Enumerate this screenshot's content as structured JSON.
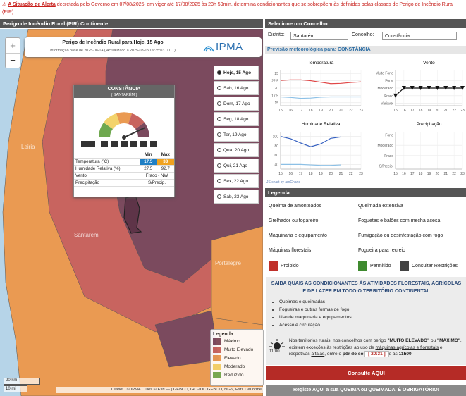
{
  "alert": {
    "icon": "⚠",
    "emphasis": "A Situação de Alerta",
    "text": "decretada pelo Governo em 07/08/2025, em vigor até 17/08/2025 às 23h 59min, determina condicionantes que se sobrepõem às definidas pelas classes de Perigo de Incêndio Rural (PIR)."
  },
  "map": {
    "header": "Perigo de Incêndio Rural (PIR) Continente",
    "zoom": [
      "+",
      "−"
    ],
    "info": {
      "title": "Perigo de Incêndio Rural para Hoje, 15 Ago",
      "subtitle": "Informação base de 2025-08-14 ( Actualizado a 2025-08-15 09:35:03 UTC )",
      "logo": "IPMA"
    },
    "places": [
      "Leiria",
      "Santarém",
      "Portalegre"
    ],
    "dates": [
      "Hoje, 15 Ago",
      "Sáb, 16 Ago",
      "Dom, 17 Ago",
      "Seg, 18 Ago",
      "Ter, 19 Ago",
      "Qua, 20 Ago",
      "Qui, 21 Ago",
      "Sex, 22 Ago",
      "Sáb, 23 Ago"
    ],
    "selected_date": 0,
    "popup": {
      "title": "CONSTÂNCIA",
      "subtitle": "( SANTARÉM )",
      "columns": [
        "Min",
        "Max"
      ],
      "rows": [
        [
          "Temperatura (ºC)",
          17.5,
          33
        ],
        [
          "Humidade Relativa (%)",
          27.5,
          92.7
        ],
        [
          "Vento",
          "Fraco - NW"
        ],
        [
          "Precipitação",
          "S/Precip."
        ]
      ]
    },
    "legend": {
      "title": "Legenda",
      "items": [
        {
          "label": "Máximo",
          "color": "#7b4a5e"
        },
        {
          "label": "Muito Elevado",
          "color": "#c8645f"
        },
        {
          "label": "Elevado",
          "color": "#ea9a52"
        },
        {
          "label": "Moderado",
          "color": "#f3d36b"
        },
        {
          "label": "Reduzido",
          "color": "#6fa84f"
        }
      ]
    },
    "scale": [
      "20 km",
      "10 mi"
    ],
    "attribution": "Leaflet | © IPMA | Tiles © Esri — | GEBCO, IHO-IOC GEBCO, NGS, Esri, DeLorme"
  },
  "side": {
    "header": "Selecione um Concelho",
    "district_label": "Distrito:",
    "district": "Santarém",
    "municipality_label": "Concelho:",
    "municipality": "Constância",
    "forecast_title": "Previsão meteorológica para: CONSTÂNCIA",
    "chart_credit": "JS chart by amCharts",
    "legend": {
      "title": "Legenda",
      "activities": [
        "Queima de amontoados",
        "Queimada extensiva",
        "Grelhador ou fogareiro",
        "Foguetes e balões com mecha acesa",
        "Maquinaria e equipamento",
        "Fumigação ou desinfestação com fogo",
        "Máquinas florestais",
        "Fogueira para recreio"
      ],
      "statuses": [
        {
          "label": "Proibido",
          "color": "#c0302a"
        },
        {
          "label": "Permitido",
          "color": "#3f8a2f"
        },
        {
          "label": "Consultar Restrições",
          "color": "#444444"
        }
      ]
    },
    "notice": {
      "title": "SAIBA QUAIS AS CONDICIONANTES ÀS ATIVIDADES FLORESTAIS, AGRÍCOLAS E DE LAZER EM TODO O TERRITÓRIO CONTINENTAL",
      "items": [
        "Queimas e queimadas",
        "Fogueiras e outras formas de fogo",
        "Uso de maquinaria e equipamentos",
        "Acesso e circulação"
      ],
      "sun_time": "11:00",
      "paragraph": [
        {
          "text": "Nos territórios rurais, nos concelhos com perigo "
        },
        {
          "text": "\"MUITO ELEVADO\"",
          "style": "bold"
        },
        {
          "text": " ou "
        },
        {
          "text": "\"MÁXIMO\"",
          "style": "bold"
        },
        {
          "text": ", existem exceções às restrições ao uso de "
        },
        {
          "text": "máquinas agrícolas e florestais",
          "style": "link"
        },
        {
          "text": " e respetivas "
        },
        {
          "text": "alfaias",
          "style": "link"
        },
        {
          "text": ", entre o "
        },
        {
          "text": "pôr do sol",
          "style": "bold"
        },
        {
          "text": " [ 20:31 ] ",
          "style": "time"
        },
        {
          "text": " e as "
        },
        {
          "text": "11h00.",
          "style": "bold"
        }
      ]
    },
    "button": "Consulte AQUI",
    "footer": {
      "link": "Registe AQUI",
      "text": " a sua QUEIMA ou QUEIMADA. É OBRIGATÓRIO!"
    }
  },
  "chart_data": [
    {
      "type": "line",
      "title": "Temperatura",
      "categories": [
        15,
        16,
        17,
        18,
        19,
        20,
        21,
        22,
        23
      ],
      "ylim": [
        14,
        26
      ],
      "yticks": [
        15,
        17.5,
        20,
        22.5,
        25
      ],
      "grid": true,
      "series": [
        {
          "color": "#e04646",
          "values": [
            22.6,
            22.8,
            22.8,
            22.5,
            22,
            21.5,
            21.6,
            21.9,
            22.1
          ]
        },
        {
          "color": "#8cc0e6",
          "values": [
            17,
            16.8,
            16.5,
            16.6,
            16.9,
            17,
            17,
            17,
            17
          ]
        }
      ]
    },
    {
      "type": "line",
      "title": "Vento",
      "categories": [
        15,
        16,
        17,
        18,
        19,
        20,
        21,
        22,
        23
      ],
      "ylim": [
        -0.3,
        4.3
      ],
      "yticks": [
        {
          "value": 0,
          "label": "Variável"
        },
        {
          "value": 1,
          "label": "Fraco"
        },
        {
          "value": 2,
          "label": "Moderado"
        },
        {
          "value": 3,
          "label": "Forte"
        },
        {
          "value": 4,
          "label": "Muito Forte"
        }
      ],
      "grid": true,
      "series": [
        {
          "color": "#111111",
          "marker": "arrow",
          "values": [
            1,
            2,
            2,
            2,
            2,
            2,
            2,
            2,
            2
          ]
        }
      ]
    },
    {
      "type": "line",
      "title": "Humidade Relativa",
      "categories": [
        15,
        16,
        17,
        18,
        19,
        20,
        21,
        22,
        23
      ],
      "ylim": [
        30,
        110
      ],
      "yticks": [
        40,
        60,
        80,
        100
      ],
      "grid": true,
      "series": [
        {
          "color": "#3560c0",
          "values": [
            100,
            95,
            86,
            78,
            84,
            96,
            99,
            null,
            null
          ]
        },
        {
          "color": "#8cc0e6",
          "values": [
            40,
            40,
            40,
            39,
            38,
            38,
            39,
            null,
            null
          ]
        }
      ]
    },
    {
      "type": "line",
      "title": "Precipitação",
      "categories": [
        15,
        16,
        17,
        18,
        19,
        20,
        21,
        22,
        23
      ],
      "ylim": [
        -0.3,
        3.3
      ],
      "yticks": [
        {
          "value": 0,
          "label": "S/Precip."
        },
        {
          "value": 1,
          "label": "Fraco"
        },
        {
          "value": 2,
          "label": "Moderado"
        },
        {
          "value": 3,
          "label": "Forte"
        }
      ],
      "grid": true,
      "series": []
    }
  ]
}
